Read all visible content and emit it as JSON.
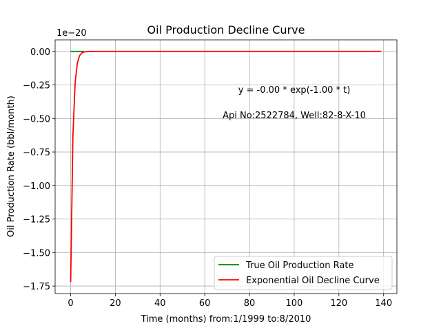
{
  "chart_data": {
    "type": "line",
    "title": "Oil Production Decline Curve",
    "xlabel": "Time (months) from:1/1999 to:8/2010",
    "ylabel": "Oil Production Rate (bbl/month)",
    "y_offset_text": "1e−20",
    "xlim": [
      -6.95,
      145.95
    ],
    "ylim": [
      -1.806,
      0.086
    ],
    "x_ticks": [
      0,
      20,
      40,
      60,
      80,
      100,
      120,
      140
    ],
    "x_tick_labels": [
      "0",
      "20",
      "40",
      "60",
      "80",
      "100",
      "120",
      "140"
    ],
    "y_ticks": [
      0.0,
      -0.25,
      -0.5,
      -0.75,
      -1.0,
      -1.25,
      -1.5,
      -1.75
    ],
    "y_tick_labels": [
      "0.00",
      "−0.25",
      "−0.50",
      "−0.75",
      "−1.00",
      "−1.25",
      "−1.50",
      "−1.75"
    ],
    "y_scale_factor": 1e-20,
    "grid": true,
    "legend_position": "lower-right",
    "annotations": [
      "y = -0.00 * exp(-1.00 * t)",
      "Api No:2522784, Well:82-8-X-10"
    ],
    "series": [
      {
        "name": "True Oil Production Rate",
        "color": "#008000",
        "x_start": 0,
        "x_end": 6,
        "constant_y": 0.0
      },
      {
        "name": "Exponential Oil Decline Curve",
        "color": "#ff0000",
        "model": "exponential",
        "amplitude": -1.72,
        "rate": 1.0,
        "x_start": 0,
        "x_end": 139,
        "x_step": 1
      }
    ]
  }
}
